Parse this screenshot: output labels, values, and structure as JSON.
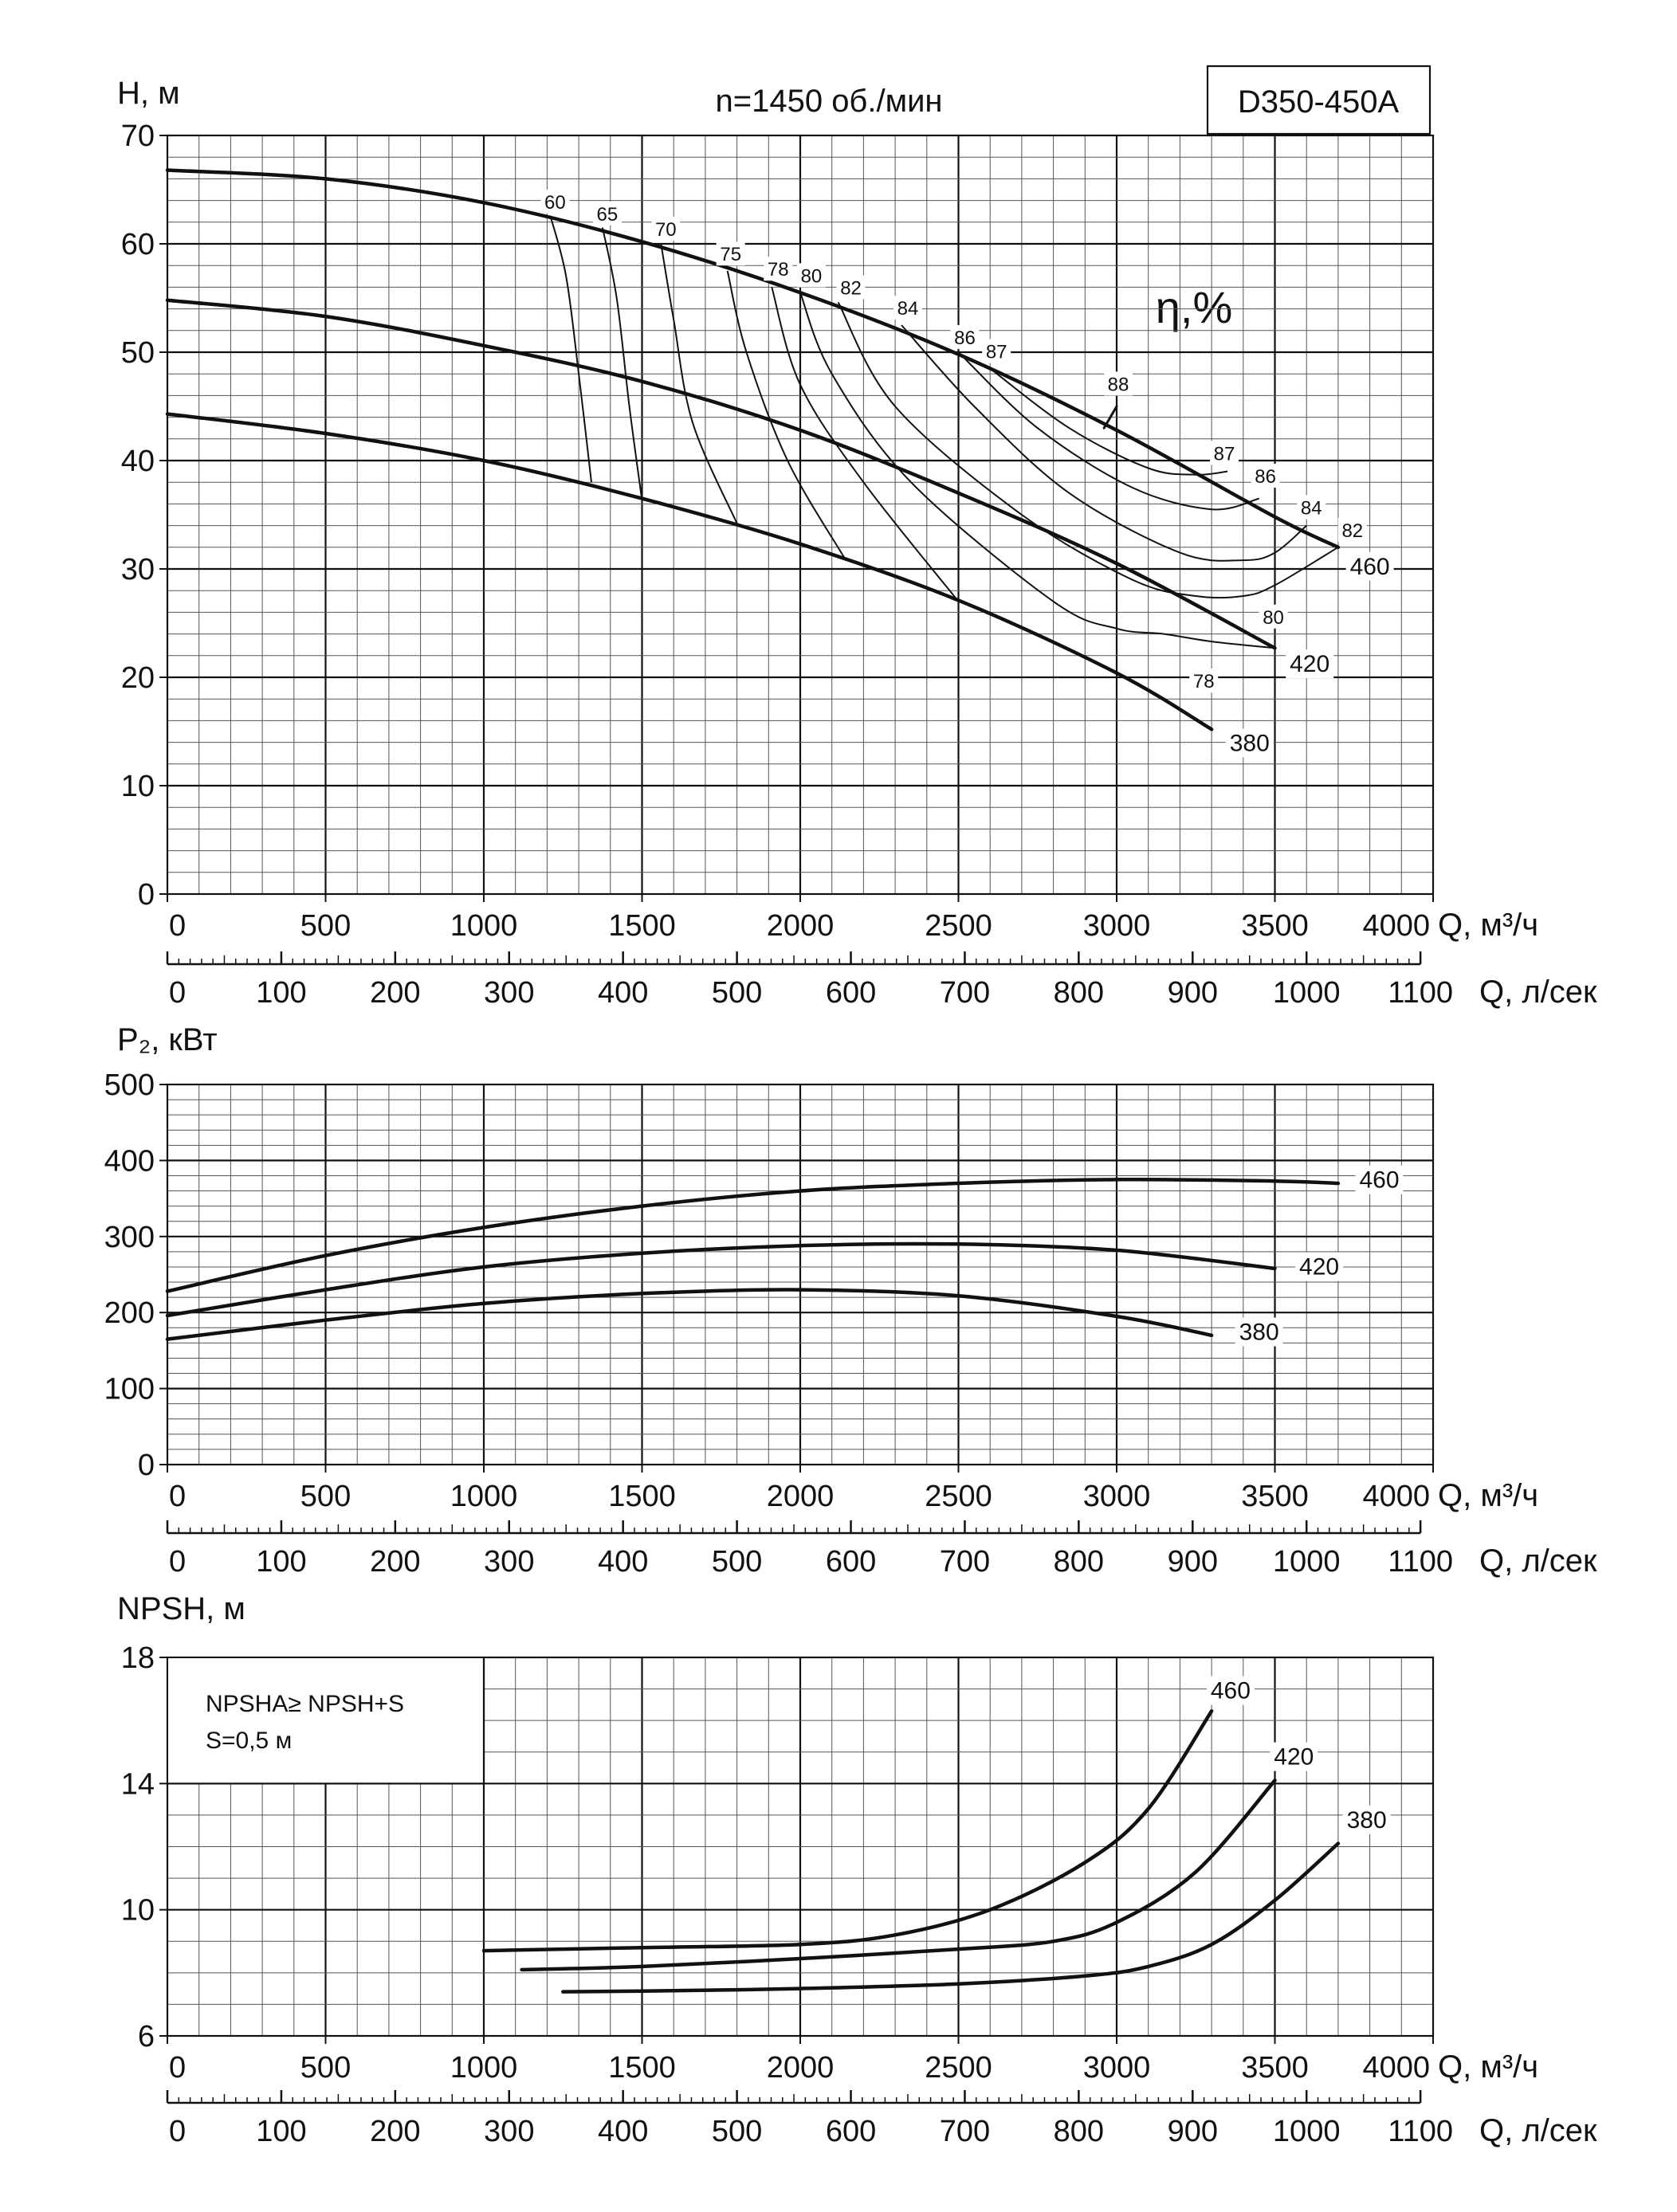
{
  "colors": {
    "line": "#111111",
    "background": "#ffffff"
  },
  "header": {
    "speed": "n=1450 об./мин",
    "model": "D350-450A",
    "efficiency_label": "η,%"
  },
  "chart_data": [
    {
      "type": "line",
      "id": "head",
      "ylabel": "H, м",
      "xlabel": "Q, м³/ч",
      "x2label": "Q, л/сек",
      "xlim": [
        0,
        4000
      ],
      "ylim": [
        0,
        70
      ],
      "xticks": [
        0,
        500,
        1000,
        1500,
        2000,
        2500,
        3000,
        3500,
        4000
      ],
      "yticks": [
        0,
        10,
        20,
        30,
        40,
        50,
        60,
        70
      ],
      "x2ticks": [
        0,
        100,
        200,
        300,
        400,
        500,
        600,
        700,
        800,
        900,
        1000,
        1100
      ],
      "grid": true,
      "series": [
        {
          "name": "460",
          "x": [
            0,
            500,
            1000,
            1500,
            2000,
            2500,
            3000,
            3500,
            3700
          ],
          "y": [
            66.8,
            66,
            63.8,
            60.2,
            55.5,
            49.8,
            42.8,
            34.8,
            32
          ]
        },
        {
          "name": "420",
          "x": [
            0,
            500,
            1000,
            1500,
            2000,
            2500,
            3000,
            3500
          ],
          "y": [
            54.8,
            53.3,
            50.6,
            47.3,
            42.8,
            37,
            30.5,
            22.7
          ]
        },
        {
          "name": "380",
          "x": [
            0,
            500,
            1000,
            1500,
            2000,
            2500,
            3000,
            3300
          ],
          "y": [
            44.3,
            42.5,
            40,
            36.5,
            32.3,
            27.1,
            20.4,
            15.2
          ]
        }
      ],
      "efficiency_curves": [
        {
          "label": "60",
          "x": [
            1210,
            1260,
            1300,
            1340
          ],
          "y": [
            62.6,
            57,
            48,
            38
          ]
        },
        {
          "label": "65",
          "x": [
            1375,
            1420,
            1460,
            1500
          ],
          "y": [
            61.5,
            55,
            45,
            36.3
          ]
        },
        {
          "label": "70",
          "x": [
            1560,
            1600,
            1660,
            1800
          ],
          "y": [
            60,
            53,
            43.5,
            34.2
          ]
        },
        {
          "label": "75",
          "x": [
            1770,
            1830,
            1960,
            2140
          ],
          "y": [
            57.5,
            50,
            40,
            31
          ]
        },
        {
          "label": "78",
          "x": [
            1910,
            2000,
            2200,
            2500
          ],
          "y": [
            56,
            47,
            38,
            27
          ]
        },
        {
          "label": "80",
          "x": [
            2000,
            2100,
            2350,
            2800,
            3000,
            3150,
            3300,
            3500
          ],
          "y": [
            55.5,
            48,
            38,
            27,
            24.5,
            24,
            23.3,
            22.7
          ]
        },
        {
          "label": "82",
          "x": [
            2120,
            2300,
            2700,
            3050,
            3250,
            3400,
            3500,
            3700
          ],
          "y": [
            54.6,
            45,
            35,
            29,
            27.5,
            27.5,
            28.5,
            32
          ]
        },
        {
          "label": "84",
          "x": [
            2320,
            2550,
            2850,
            3200,
            3400,
            3500,
            3600
          ],
          "y": [
            52.5,
            45,
            37,
            31.5,
            30.8,
            31.5,
            34
          ]
        },
        {
          "label": "86",
          "x": [
            2500,
            2750,
            3050,
            3300,
            3450
          ],
          "y": [
            50,
            43,
            37.5,
            35.5,
            36.5
          ]
        },
        {
          "label": "87",
          "x": [
            2600,
            2850,
            3100,
            3250,
            3350
          ],
          "y": [
            48.5,
            43,
            39.3,
            38.7,
            39
          ]
        },
        {
          "label": "88",
          "x": [
            2960,
            3000
          ],
          "y": [
            43,
            45
          ]
        }
      ],
      "efficiency_labels": [
        "60",
        "65",
        "70",
        "75",
        "78",
        "80",
        "82",
        "84",
        "86",
        "87",
        "88",
        "87",
        "86",
        "84",
        "82",
        "80",
        "78"
      ]
    },
    {
      "type": "line",
      "id": "power",
      "ylabel": "P₂, кВт",
      "xlabel": "Q, м³/ч",
      "x2label": "Q, л/сек",
      "xlim": [
        0,
        4000
      ],
      "ylim": [
        0,
        500
      ],
      "xticks": [
        0,
        500,
        1000,
        1500,
        2000,
        2500,
        3000,
        3500,
        4000
      ],
      "yticks": [
        0,
        100,
        200,
        300,
        400,
        500
      ],
      "x2ticks": [
        0,
        100,
        200,
        300,
        400,
        500,
        600,
        700,
        800,
        900,
        1000,
        1100
      ],
      "grid": true,
      "series": [
        {
          "name": "460",
          "x": [
            0,
            500,
            1000,
            1500,
            2000,
            2500,
            3000,
            3500,
            3700
          ],
          "y": [
            228,
            275,
            312,
            340,
            360,
            370,
            375,
            373,
            370
          ]
        },
        {
          "name": "420",
          "x": [
            0,
            500,
            1000,
            1500,
            2000,
            2500,
            3000,
            3500
          ],
          "y": [
            196,
            230,
            260,
            278,
            288,
            290,
            282,
            258
          ]
        },
        {
          "name": "380",
          "x": [
            0,
            500,
            1000,
            1500,
            2000,
            2500,
            3000,
            3300
          ],
          "y": [
            165,
            190,
            212,
            225,
            230,
            222,
            195,
            170
          ]
        }
      ]
    },
    {
      "type": "line",
      "id": "npsh",
      "ylabel": "NPSH, м",
      "xlabel": "Q, м³/ч",
      "x2label": "Q, л/сек",
      "xlim": [
        0,
        4000
      ],
      "ylim": [
        6,
        18
      ],
      "xticks": [
        0,
        500,
        1000,
        1500,
        2000,
        2500,
        3000,
        3500,
        4000
      ],
      "yticks": [
        6,
        10,
        14,
        18
      ],
      "x2ticks": [
        0,
        100,
        200,
        300,
        400,
        500,
        600,
        700,
        800,
        900,
        1000,
        1100
      ],
      "grid": true,
      "note": [
        "NPSHA≥ NPSH+S",
        "S=0,5 м"
      ],
      "series": [
        {
          "name": "460",
          "x": [
            1000,
            1500,
            2000,
            2300,
            2600,
            2900,
            3100,
            3300
          ],
          "y": [
            8.7,
            8.8,
            8.9,
            9.2,
            10,
            11.5,
            13.2,
            16.3
          ]
        },
        {
          "name": "420",
          "x": [
            1120,
            1500,
            2000,
            2500,
            2800,
            3000,
            3250,
            3500
          ],
          "y": [
            8.1,
            8.2,
            8.45,
            8.75,
            9,
            9.6,
            11.2,
            14.1
          ]
        },
        {
          "name": "380",
          "x": [
            1250,
            1500,
            2000,
            2500,
            2900,
            3100,
            3300,
            3500,
            3700
          ],
          "y": [
            7.4,
            7.42,
            7.5,
            7.65,
            7.9,
            8.2,
            8.9,
            10.3,
            12.1
          ]
        }
      ]
    }
  ]
}
